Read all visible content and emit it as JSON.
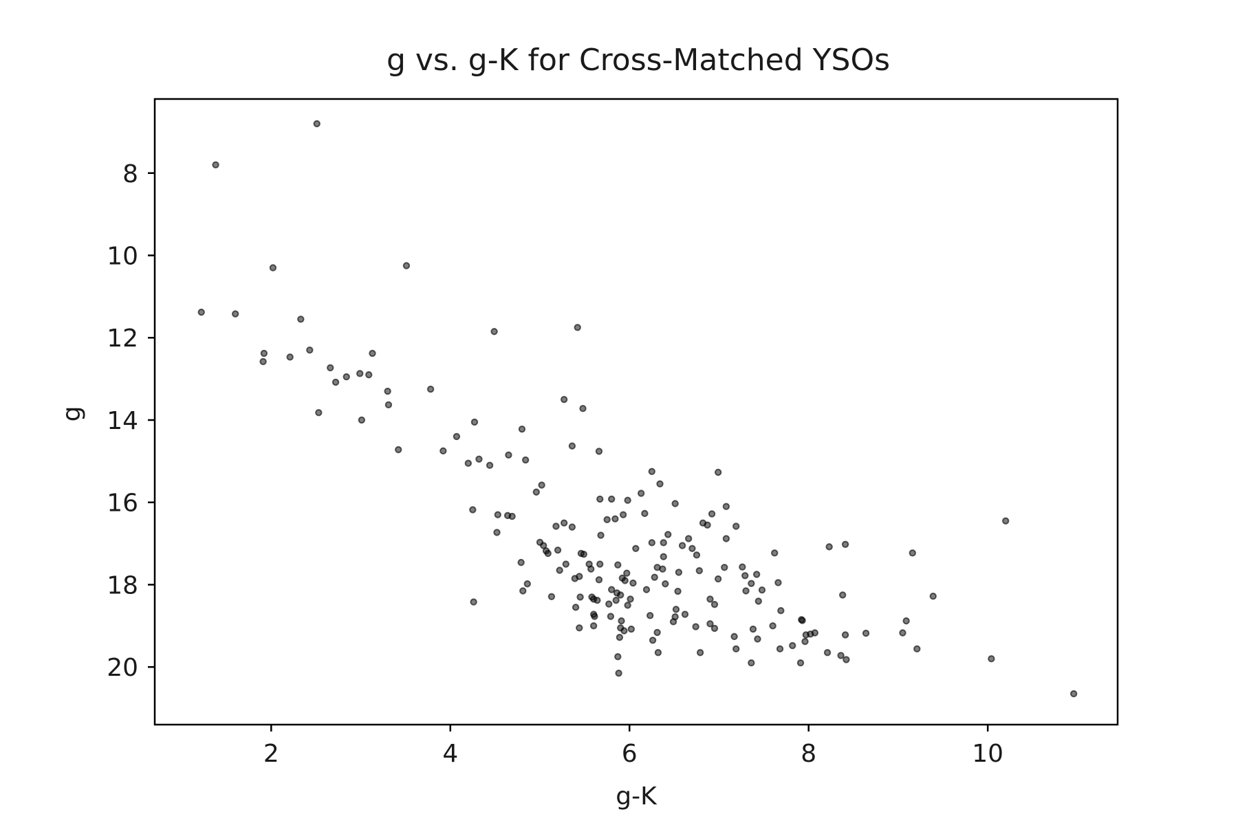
{
  "chart_data": {
    "type": "scatter",
    "title": "g vs. g-K for Cross-Matched YSOs",
    "xlabel": "g-K",
    "ylabel": "g",
    "xlim": [
      0.7,
      11.45
    ],
    "ylim": [
      21.4,
      6.2
    ],
    "y_inverted": true,
    "grid": false,
    "legend": "none",
    "point_color": "#000000",
    "xticks": [
      2,
      4,
      6,
      8,
      10
    ],
    "yticks": [
      8,
      10,
      12,
      14,
      16,
      18,
      20
    ],
    "xtick_labels": [
      "2",
      "4",
      "6",
      "8",
      "10"
    ],
    "ytick_labels": [
      "8",
      "10",
      "12",
      "14",
      "16",
      "18",
      "20"
    ],
    "points": [
      [
        2.51,
        6.8
      ],
      [
        1.38,
        7.8
      ],
      [
        2.02,
        10.3
      ],
      [
        3.51,
        10.25
      ],
      [
        1.22,
        11.38
      ],
      [
        1.6,
        11.42
      ],
      [
        2.33,
        11.55
      ],
      [
        4.49,
        11.85
      ],
      [
        5.42,
        11.75
      ],
      [
        1.92,
        12.38
      ],
      [
        1.91,
        12.58
      ],
      [
        2.21,
        12.47
      ],
      [
        2.43,
        12.3
      ],
      [
        3.13,
        12.38
      ],
      [
        2.66,
        12.73
      ],
      [
        2.72,
        13.08
      ],
      [
        2.84,
        12.95
      ],
      [
        2.99,
        12.87
      ],
      [
        3.09,
        12.9
      ],
      [
        3.3,
        13.3
      ],
      [
        3.31,
        13.63
      ],
      [
        3.78,
        13.25
      ],
      [
        2.53,
        13.82
      ],
      [
        3.01,
        14.0
      ],
      [
        4.27,
        14.05
      ],
      [
        4.8,
        14.22
      ],
      [
        5.27,
        13.5
      ],
      [
        5.48,
        13.72
      ],
      [
        3.42,
        14.72
      ],
      [
        3.92,
        14.75
      ],
      [
        4.07,
        14.4
      ],
      [
        4.2,
        15.05
      ],
      [
        4.32,
        14.95
      ],
      [
        4.44,
        15.1
      ],
      [
        4.65,
        14.85
      ],
      [
        4.84,
        14.97
      ],
      [
        5.36,
        14.63
      ],
      [
        5.66,
        14.76
      ],
      [
        6.25,
        15.25
      ],
      [
        6.99,
        15.27
      ],
      [
        6.34,
        15.55
      ],
      [
        5.02,
        15.58
      ],
      [
        4.96,
        15.75
      ],
      [
        4.25,
        16.18
      ],
      [
        4.53,
        16.3
      ],
      [
        4.64,
        16.32
      ],
      [
        4.69,
        16.34
      ],
      [
        4.52,
        16.73
      ],
      [
        5.67,
        15.92
      ],
      [
        5.8,
        15.92
      ],
      [
        5.98,
        15.95
      ],
      [
        6.13,
        15.78
      ],
      [
        5.93,
        16.3
      ],
      [
        5.75,
        16.42
      ],
      [
        5.84,
        16.4
      ],
      [
        6.17,
        16.27
      ],
      [
        6.51,
        16.03
      ],
      [
        6.92,
        16.28
      ],
      [
        7.08,
        16.1
      ],
      [
        6.82,
        16.5
      ],
      [
        6.87,
        16.55
      ],
      [
        7.19,
        16.58
      ],
      [
        5.18,
        16.58
      ],
      [
        5.27,
        16.5
      ],
      [
        5.36,
        16.6
      ],
      [
        5.68,
        16.8
      ],
      [
        6.43,
        16.78
      ],
      [
        6.25,
        16.98
      ],
      [
        6.38,
        16.98
      ],
      [
        6.66,
        16.88
      ],
      [
        6.59,
        17.05
      ],
      [
        6.7,
        17.12
      ],
      [
        6.75,
        17.28
      ],
      [
        7.08,
        16.88
      ],
      [
        5.0,
        16.97
      ],
      [
        5.04,
        17.05
      ],
      [
        5.07,
        17.18
      ],
      [
        5.09,
        17.24
      ],
      [
        5.2,
        17.16
      ],
      [
        5.46,
        17.24
      ],
      [
        5.49,
        17.26
      ],
      [
        6.07,
        17.12
      ],
      [
        6.38,
        17.32
      ],
      [
        4.79,
        17.46
      ],
      [
        5.22,
        17.65
      ],
      [
        5.29,
        17.5
      ],
      [
        5.55,
        17.5
      ],
      [
        5.57,
        17.62
      ],
      [
        5.67,
        17.5
      ],
      [
        5.87,
        17.52
      ],
      [
        5.97,
        17.72
      ],
      [
        6.28,
        17.82
      ],
      [
        6.31,
        17.58
      ],
      [
        6.37,
        17.62
      ],
      [
        6.55,
        17.7
      ],
      [
        6.78,
        17.66
      ],
      [
        7.06,
        17.58
      ],
      [
        7.26,
        17.57
      ],
      [
        7.29,
        17.78
      ],
      [
        7.42,
        17.75
      ],
      [
        7.36,
        17.97
      ],
      [
        7.62,
        17.23
      ],
      [
        5.39,
        17.85
      ],
      [
        5.44,
        17.8
      ],
      [
        5.66,
        17.88
      ],
      [
        5.92,
        17.84
      ],
      [
        5.95,
        17.9
      ],
      [
        6.04,
        17.96
      ],
      [
        6.4,
        17.98
      ],
      [
        6.99,
        17.86
      ],
      [
        7.3,
        18.15
      ],
      [
        7.48,
        18.13
      ],
      [
        7.66,
        17.95
      ],
      [
        4.86,
        17.98
      ],
      [
        4.81,
        18.15
      ],
      [
        5.13,
        18.29
      ],
      [
        5.45,
        18.3
      ],
      [
        5.58,
        18.3
      ],
      [
        5.6,
        18.35
      ],
      [
        5.64,
        18.38
      ],
      [
        5.8,
        18.12
      ],
      [
        5.86,
        18.2
      ],
      [
        5.9,
        18.25
      ],
      [
        5.98,
        18.5
      ],
      [
        6.01,
        18.35
      ],
      [
        6.19,
        18.12
      ],
      [
        6.54,
        18.16
      ],
      [
        6.9,
        18.35
      ],
      [
        6.95,
        18.48
      ],
      [
        7.44,
        18.4
      ],
      [
        4.26,
        18.42
      ],
      [
        5.4,
        18.55
      ],
      [
        5.77,
        18.47
      ],
      [
        5.85,
        18.38
      ],
      [
        6.23,
        18.75
      ],
      [
        6.52,
        18.6
      ],
      [
        6.51,
        18.78
      ],
      [
        6.62,
        18.72
      ],
      [
        6.49,
        18.9
      ],
      [
        5.6,
        18.72
      ],
      [
        5.61,
        18.77
      ],
      [
        5.79,
        18.77
      ],
      [
        5.91,
        18.88
      ],
      [
        7.69,
        18.63
      ],
      [
        7.92,
        18.85
      ],
      [
        7.93,
        18.87
      ],
      [
        5.44,
        19.05
      ],
      [
        5.6,
        19.0
      ],
      [
        5.9,
        19.05
      ],
      [
        5.94,
        19.12
      ],
      [
        6.02,
        19.08
      ],
      [
        6.31,
        19.16
      ],
      [
        6.74,
        19.02
      ],
      [
        6.9,
        18.95
      ],
      [
        6.95,
        19.06
      ],
      [
        7.38,
        19.08
      ],
      [
        7.6,
        19.0
      ],
      [
        7.97,
        19.22
      ],
      [
        8.02,
        19.2
      ],
      [
        8.07,
        19.17
      ],
      [
        5.89,
        19.28
      ],
      [
        6.26,
        19.35
      ],
      [
        7.17,
        19.26
      ],
      [
        7.43,
        19.32
      ],
      [
        7.82,
        19.48
      ],
      [
        7.96,
        19.38
      ],
      [
        8.41,
        19.22
      ],
      [
        8.64,
        19.18
      ],
      [
        9.05,
        19.17
      ],
      [
        5.87,
        19.75
      ],
      [
        6.32,
        19.65
      ],
      [
        6.79,
        19.65
      ],
      [
        7.19,
        19.56
      ],
      [
        7.68,
        19.56
      ],
      [
        8.21,
        19.65
      ],
      [
        8.36,
        19.72
      ],
      [
        8.42,
        19.82
      ],
      [
        7.36,
        19.9
      ],
      [
        7.91,
        19.9
      ],
      [
        5.88,
        20.15
      ],
      [
        8.23,
        17.08
      ],
      [
        8.41,
        17.02
      ],
      [
        9.16,
        17.23
      ],
      [
        8.38,
        18.25
      ],
      [
        9.39,
        18.28
      ],
      [
        9.09,
        18.88
      ],
      [
        9.21,
        19.56
      ],
      [
        10.04,
        19.8
      ],
      [
        10.2,
        16.45
      ],
      [
        10.96,
        20.65
      ]
    ]
  }
}
